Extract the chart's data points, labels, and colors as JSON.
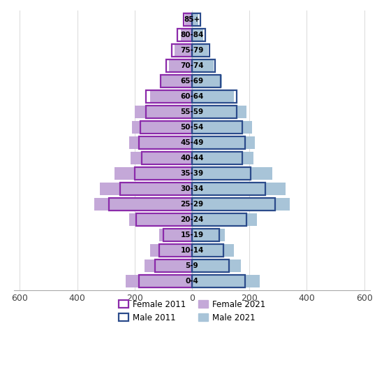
{
  "age_groups": [
    "0-4",
    "5-9",
    "10-14",
    "15-19",
    "20-24",
    "25-29",
    "30-34",
    "35-39",
    "40-44",
    "45-49",
    "50-54",
    "55-59",
    "60-64",
    "65-69",
    "70-74",
    "75-79",
    "80-84",
    "85+"
  ],
  "female_2011": [
    185,
    130,
    115,
    100,
    195,
    290,
    250,
    200,
    175,
    185,
    180,
    160,
    160,
    110,
    90,
    70,
    50,
    30
  ],
  "male_2011": [
    185,
    130,
    110,
    95,
    190,
    290,
    255,
    205,
    175,
    185,
    175,
    155,
    155,
    100,
    80,
    60,
    45,
    28
  ],
  "female_2021": [
    230,
    165,
    145,
    115,
    220,
    340,
    320,
    270,
    215,
    220,
    210,
    200,
    145,
    110,
    80,
    60,
    40,
    25
  ],
  "male_2021": [
    235,
    170,
    145,
    115,
    225,
    340,
    325,
    280,
    215,
    220,
    210,
    190,
    145,
    105,
    75,
    55,
    38,
    22
  ],
  "female_2011_color": "#8B2BAA",
  "male_2011_color": "#2B4B8B",
  "female_2021_color": "#C4A8D8",
  "male_2021_color": "#A8C4D8",
  "xlim": [
    -620,
    620
  ],
  "xticks": [
    -600,
    -400,
    -200,
    0,
    200,
    400,
    600
  ],
  "xticklabels": [
    "600",
    "400",
    "200",
    "0",
    "200",
    "400",
    "600"
  ],
  "bar_height": 0.82,
  "legend_labels": [
    "Female 2011",
    "Male 2011",
    "Female 2021",
    "Male 2021"
  ],
  "background_color": "#ffffff",
  "grid_color": "#dddddd"
}
